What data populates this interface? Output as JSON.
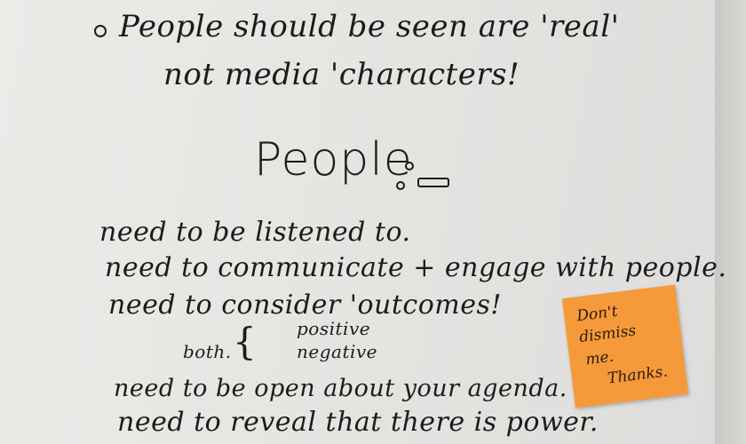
{
  "notes": {
    "bullet_line_1": "People should be seen are 'real'",
    "bullet_line_2": "not media 'characters!",
    "heading": "People",
    "line_1": "need to be listened to.",
    "line_2": "need to communicate + engage with people.",
    "line_3": "need to consider 'outcomes!",
    "both_label": "both.",
    "both_positive": "positive",
    "both_negative": "negative",
    "line_4": "need to be open about your agenda.",
    "line_5": "need to reveal that there is power."
  },
  "sticky_note": {
    "color": "#f59a3a",
    "line_1": "Don't",
    "line_2": "dismiss",
    "line_3": "me.",
    "line_4": "Thanks."
  }
}
